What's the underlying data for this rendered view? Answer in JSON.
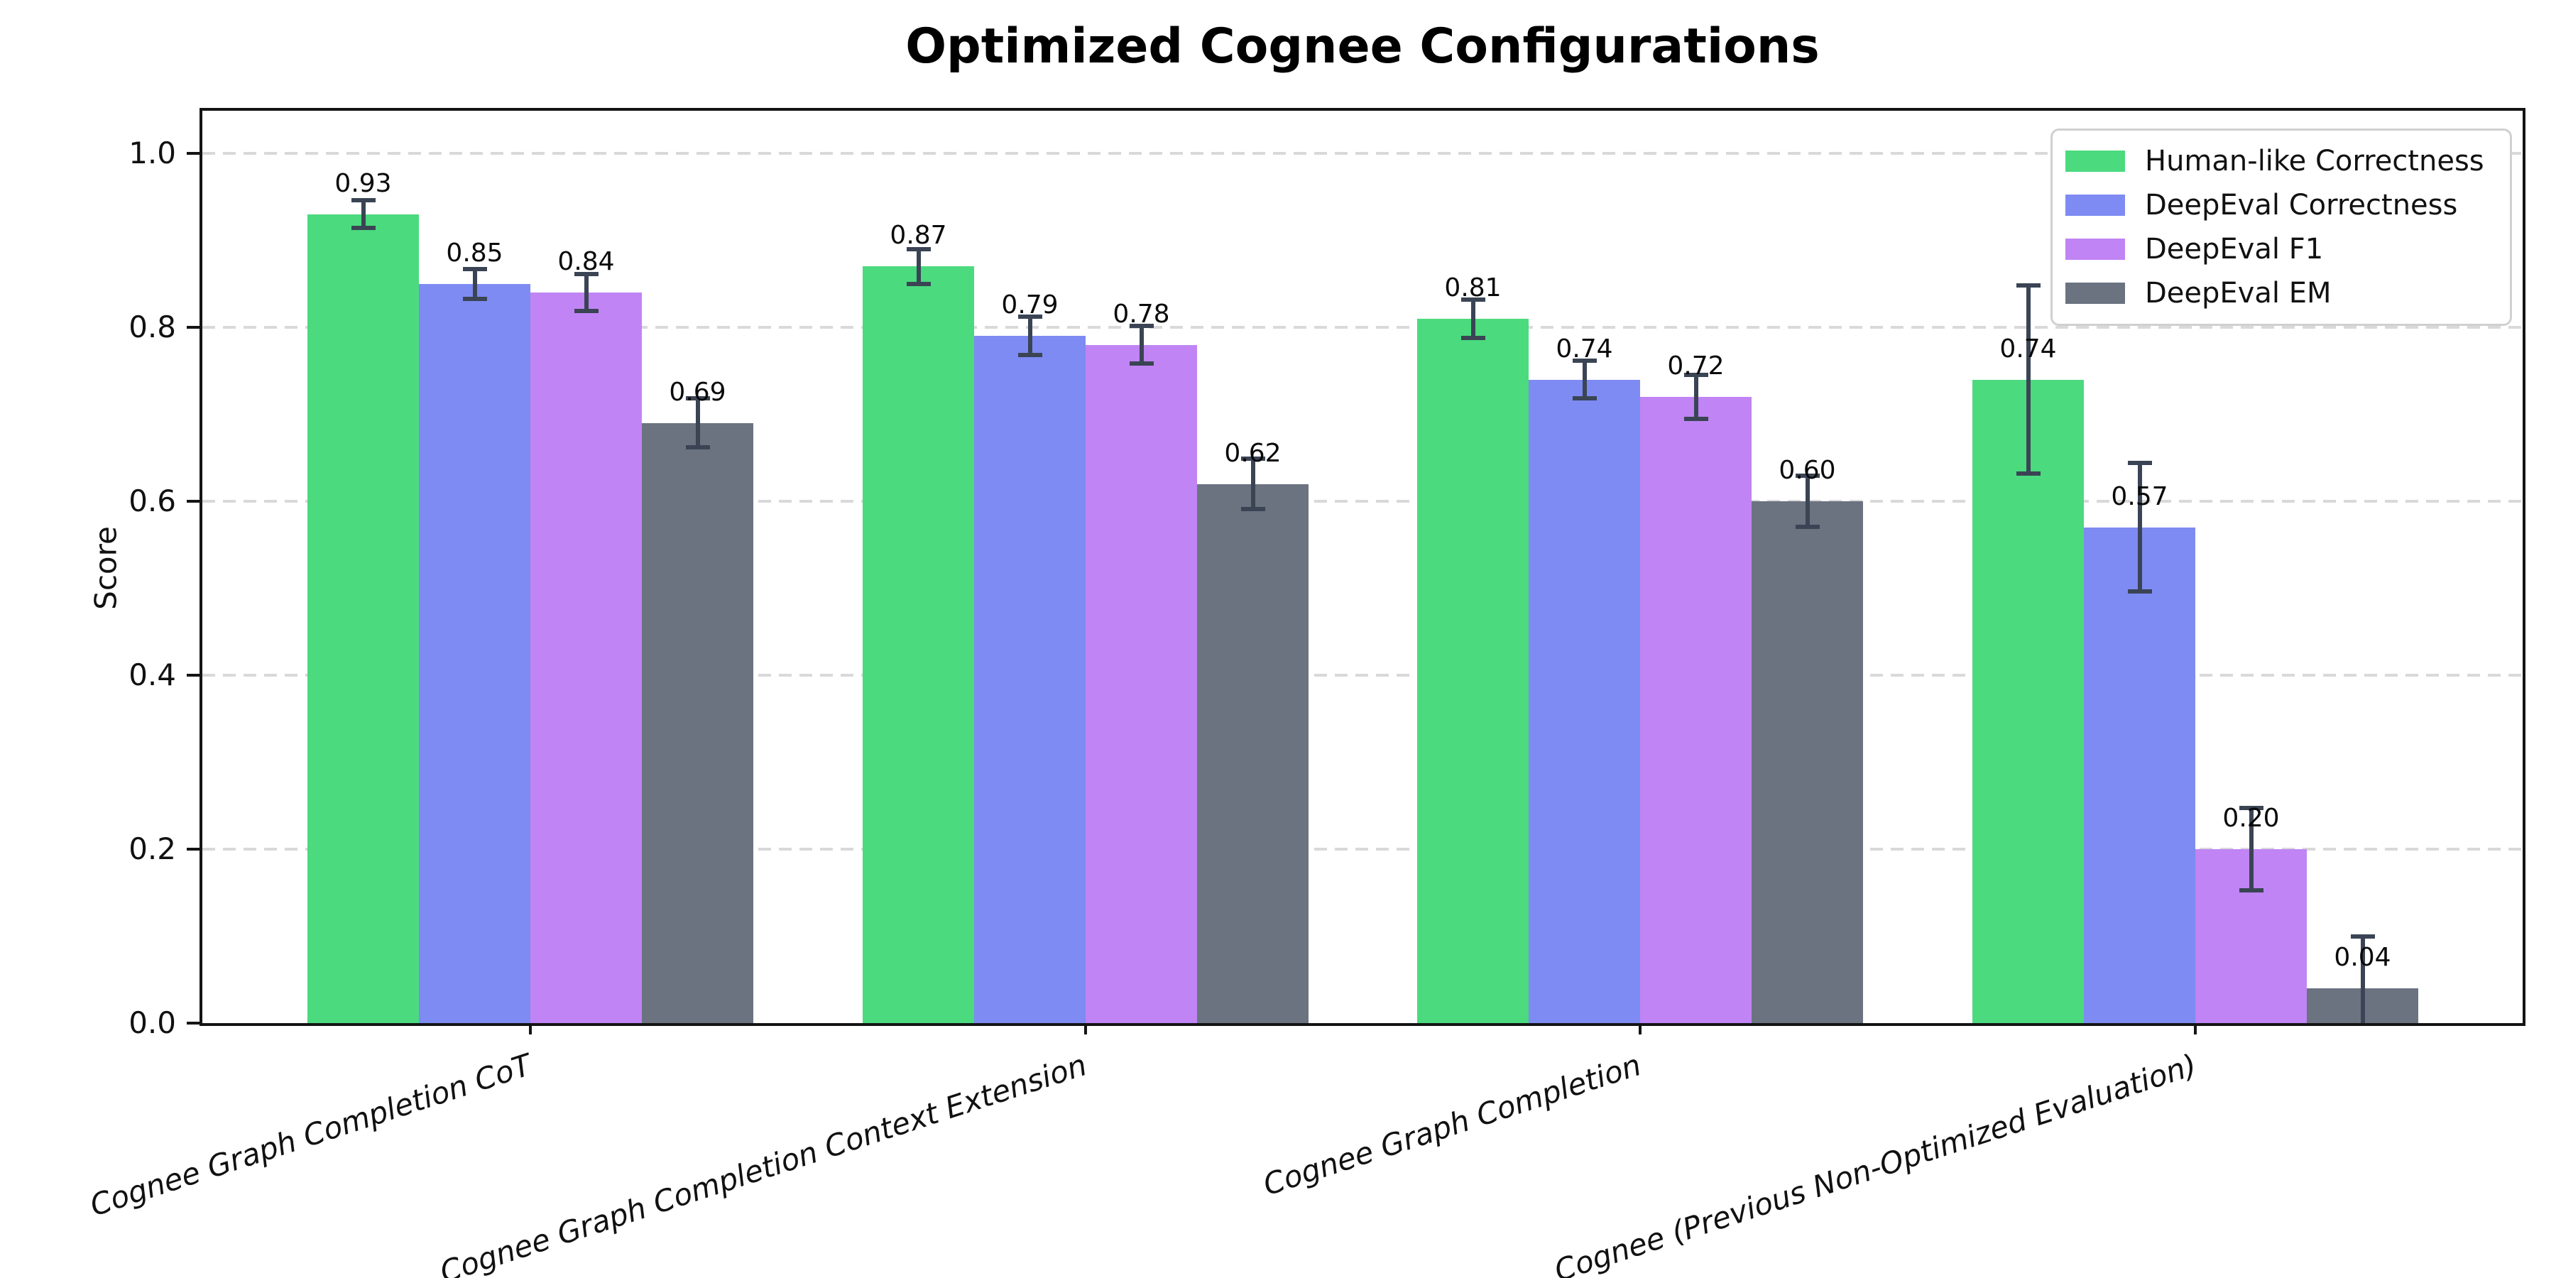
{
  "chart_data": {
    "type": "bar",
    "title": "Optimized Cognee Configurations",
    "xlabel": "",
    "ylabel": "Score",
    "ylim": [
      0,
      1.05
    ],
    "yticks": [
      "0.0",
      "0.2",
      "0.4",
      "0.6",
      "0.8",
      "1.0"
    ],
    "grid": "horizontal dashed",
    "legend_position": "upper right",
    "categories": [
      "Cognee Graph Completion CoT",
      "Cognee Graph Completion Context Extension",
      "Cognee Graph Completion",
      "Cognee (Previous Non-Optimized Evaluation)"
    ],
    "series": [
      {
        "name": "Human-like Correctness",
        "color": "#4bda7e",
        "values": [
          0.93,
          0.87,
          0.81,
          0.74
        ],
        "errors": [
          0.016,
          0.02,
          0.022,
          0.108
        ]
      },
      {
        "name": "DeepEval Correctness",
        "color": "#7e8bf2",
        "values": [
          0.85,
          0.79,
          0.74,
          0.57
        ],
        "errors": [
          0.017,
          0.022,
          0.022,
          0.074
        ]
      },
      {
        "name": "DeepEval F1",
        "color": "#c084f4",
        "values": [
          0.84,
          0.78,
          0.72,
          0.2
        ],
        "errors": [
          0.021,
          0.022,
          0.025,
          0.047
        ]
      },
      {
        "name": "DeepEval EM",
        "color": "#6b7381",
        "values": [
          0.69,
          0.62,
          0.6,
          0.04
        ],
        "errors": [
          0.028,
          0.029,
          0.029,
          0.06
        ]
      }
    ],
    "bar_value_labels_format": "0.00",
    "error_bar_color": "#3a4454",
    "grid_color": "#d9d9d9",
    "spine_color": "#141414"
  }
}
